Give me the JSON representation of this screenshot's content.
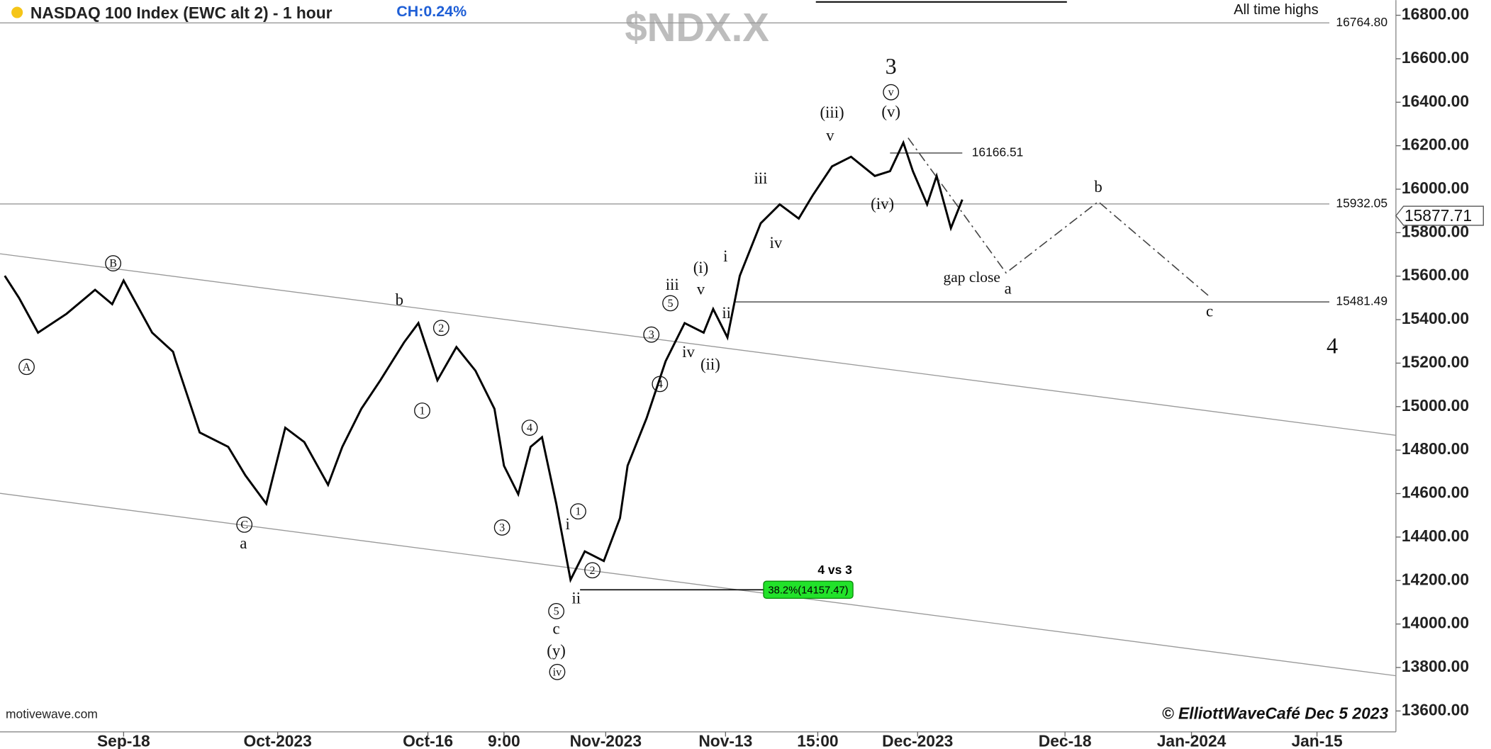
{
  "chart_data": {
    "type": "line",
    "title": "NASDAQ 100 Index (EWC alt 2) - 1 hour",
    "change_label": "CH:0.24%",
    "symbol": "$NDX.X",
    "source": "motivewave.com",
    "credit": "© ElliottWaveCafé Dec 5 2023",
    "xlim": [
      0,
      146.8
    ],
    "ylim": [
      13504,
      16870
    ],
    "xticks": [
      {
        "value": 13,
        "label": "Sep-18"
      },
      {
        "value": 29.2,
        "label": "Oct-2023"
      },
      {
        "value": 45,
        "label": "Oct-16"
      },
      {
        "value": 53,
        "label": "9:00"
      },
      {
        "value": 63.7,
        "label": "Nov-2023"
      },
      {
        "value": 76.3,
        "label": "Nov-13"
      },
      {
        "value": 86,
        "label": "15:00"
      },
      {
        "value": 96.5,
        "label": "Dec-2023"
      },
      {
        "value": 112,
        "label": "Dec-18"
      },
      {
        "value": 125.3,
        "label": "Jan-2024"
      },
      {
        "value": 138.5,
        "label": "Jan-15"
      }
    ],
    "yticks": [
      {
        "value": 13600,
        "label": "13600.00"
      },
      {
        "value": 13800,
        "label": "13800.00"
      },
      {
        "value": 14000,
        "label": "14000.00"
      },
      {
        "value": 14200,
        "label": "14200.00"
      },
      {
        "value": 14400,
        "label": "14400.00"
      },
      {
        "value": 14600,
        "label": "14600.00"
      },
      {
        "value": 14800,
        "label": "14800.00"
      },
      {
        "value": 15000,
        "label": "15000.00"
      },
      {
        "value": 15200,
        "label": "15200.00"
      },
      {
        "value": 15400,
        "label": "15400.00"
      },
      {
        "value": 15600,
        "label": "15600.00"
      },
      {
        "value": 15800,
        "label": "15800.00"
      },
      {
        "value": 16000,
        "label": "16000.00"
      },
      {
        "value": 16200,
        "label": "16200.00"
      },
      {
        "value": 16400,
        "label": "16400.00"
      },
      {
        "value": 16600,
        "label": "16600.00"
      },
      {
        "value": 16800,
        "label": "16800.00"
      }
    ],
    "x": [
      0.5,
      2,
      4,
      7,
      10,
      11.8,
      13,
      16,
      18.2,
      18.5,
      21,
      24,
      25.8,
      28,
      30,
      32,
      34.5,
      36,
      38,
      40,
      42.5,
      44,
      46,
      48,
      50,
      52,
      53,
      54.5,
      55.8,
      57,
      58.5,
      60,
      61.5,
      63.5,
      65.2,
      66,
      68,
      70,
      72,
      74,
      75,
      76.5,
      77.8,
      80,
      82,
      84,
      85.5,
      87.5,
      89.5,
      92,
      93.6,
      95,
      96,
      97.5,
      98.5,
      100,
      101.2
    ],
    "series": [
      {
        "color": "#000000",
        "values": [
          15602,
          15500,
          15340,
          15427,
          15537,
          15471,
          15580,
          15340,
          15252,
          15209,
          14881,
          14815,
          14684,
          14553,
          14903,
          14837,
          14640,
          14815,
          14990,
          15121,
          15296,
          15384,
          15121,
          15274,
          15165,
          14990,
          14728,
          14597,
          14815,
          14859,
          14553,
          14203,
          14334,
          14290,
          14487,
          14728,
          14947,
          15209,
          15384,
          15340,
          15449,
          15318,
          15602,
          15843,
          15930,
          15865,
          15974,
          16105,
          16149,
          16061,
          16083,
          16214,
          16083,
          15930,
          16061,
          15821,
          15952
        ]
      }
    ],
    "projection": {
      "color": "#444444",
      "x": [
        95.5,
        105.8,
        115.5,
        127.2
      ],
      "values": [
        16236,
        15615,
        15943,
        15506
      ]
    },
    "channel_x": [
      0,
      146.8
    ],
    "channels": [
      {
        "values": [
          15703,
          14868
        ]
      },
      {
        "values": [
          14601,
          13762
        ]
      }
    ],
    "levels": [
      {
        "value": 16764.8,
        "label": "16764.80"
      },
      {
        "value": 15932.05,
        "label": "15932.05"
      },
      {
        "value": 15481.49,
        "label": "15481.49"
      },
      {
        "value": 16166.51,
        "label": "16166.51"
      }
    ],
    "level_note": "All time highs",
    "retracement": {
      "value": 14157.47,
      "label": "38.2%(14157.47)",
      "title": "4 vs 3"
    },
    "last_price": {
      "value": 15877.71,
      "label": "15877.71"
    },
    "annotations": [
      "A",
      "B",
      "C",
      "a",
      "b",
      "1",
      "2",
      "3",
      "4",
      "5",
      "c",
      "(y)",
      "iv",
      "i",
      "1",
      "2",
      "ii",
      "3",
      "4",
      "5",
      "iii",
      "iv",
      "v",
      "(i)",
      "(ii)",
      "i",
      "ii",
      "iii",
      "iv",
      "(iii)",
      "v",
      "(iv)",
      "3",
      "v",
      "(v)",
      "b",
      "a",
      "c",
      "4",
      "gap close"
    ]
  }
}
